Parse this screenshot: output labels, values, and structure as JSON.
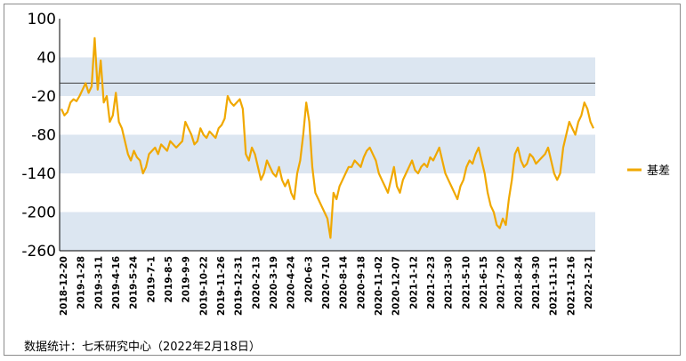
{
  "chart_data": {
    "type": "line",
    "title": "",
    "xlabel": "",
    "ylabel": "",
    "ylim": [
      -260,
      100
    ],
    "yticks": [
      100,
      40,
      -20,
      -80,
      -140,
      -200,
      -260
    ],
    "reference_line": 0,
    "bands": [
      [
        -20,
        40
      ],
      [
        -140,
        -80
      ],
      [
        -260,
        -200
      ]
    ],
    "grid": false,
    "legend_position": "right",
    "series_color": "#f0a800",
    "band_color": "#dce6f1",
    "xtick_labels": [
      "2018-12-20",
      "2019-1-28",
      "2019-3-11",
      "2019-4-16",
      "2019-5-24",
      "2019-7-1",
      "2019-8-5",
      "2019-9-9",
      "2019-10-22",
      "2019-11-26",
      "2019-12-31",
      "2020-2-13",
      "2020-3-19",
      "2020-4-24",
      "2020-6-3",
      "2020-7-10",
      "2020-8-14",
      "2020-9-18",
      "2020-11-02",
      "2020-12-07",
      "2021-1-12",
      "2021-2-23",
      "2021-3-30",
      "2021-5-10",
      "2021-6-15",
      "2021-7-20",
      "2021-8-24",
      "2021-9-30",
      "2021-11-11",
      "2021-12-16",
      "2022-1-21"
    ],
    "series": [
      {
        "name": "基差",
        "values": [
          -40,
          -50,
          -45,
          -30,
          -25,
          -28,
          -20,
          -10,
          0,
          -15,
          -5,
          70,
          -10,
          35,
          -30,
          -20,
          -60,
          -50,
          -15,
          -60,
          -70,
          -90,
          -110,
          -120,
          -105,
          -115,
          -120,
          -140,
          -130,
          -110,
          -105,
          -100,
          -110,
          -95,
          -100,
          -105,
          -90,
          -95,
          -100,
          -95,
          -90,
          -60,
          -70,
          -80,
          -95,
          -90,
          -70,
          -80,
          -85,
          -75,
          -80,
          -85,
          -70,
          -65,
          -55,
          -20,
          -30,
          -35,
          -30,
          -25,
          -40,
          -110,
          -120,
          -100,
          -110,
          -130,
          -150,
          -140,
          -120,
          -130,
          -140,
          -145,
          -130,
          -150,
          -160,
          -150,
          -170,
          -180,
          -140,
          -120,
          -80,
          -30,
          -60,
          -130,
          -170,
          -180,
          -190,
          -200,
          -210,
          -240,
          -170,
          -180,
          -160,
          -150,
          -140,
          -130,
          -130,
          -120,
          -125,
          -130,
          -115,
          -105,
          -100,
          -110,
          -120,
          -140,
          -150,
          -160,
          -170,
          -150,
          -130,
          -160,
          -170,
          -150,
          -140,
          -130,
          -120,
          -135,
          -140,
          -130,
          -125,
          -130,
          -115,
          -120,
          -110,
          -100,
          -120,
          -140,
          -150,
          -160,
          -170,
          -180,
          -160,
          -150,
          -130,
          -120,
          -125,
          -110,
          -100,
          -120,
          -140,
          -170,
          -190,
          -200,
          -220,
          -225,
          -210,
          -220,
          -180,
          -150,
          -110,
          -100,
          -120,
          -130,
          -125,
          -110,
          -115,
          -125,
          -120,
          -115,
          -110,
          -100,
          -120,
          -140,
          -150,
          -140,
          -100,
          -80,
          -60,
          -70,
          -80,
          -60,
          -50,
          -30,
          -40,
          -60,
          -70
        ]
      }
    ],
    "source_note": "数据统计：七禾研究中心（2022年2月18日）"
  }
}
